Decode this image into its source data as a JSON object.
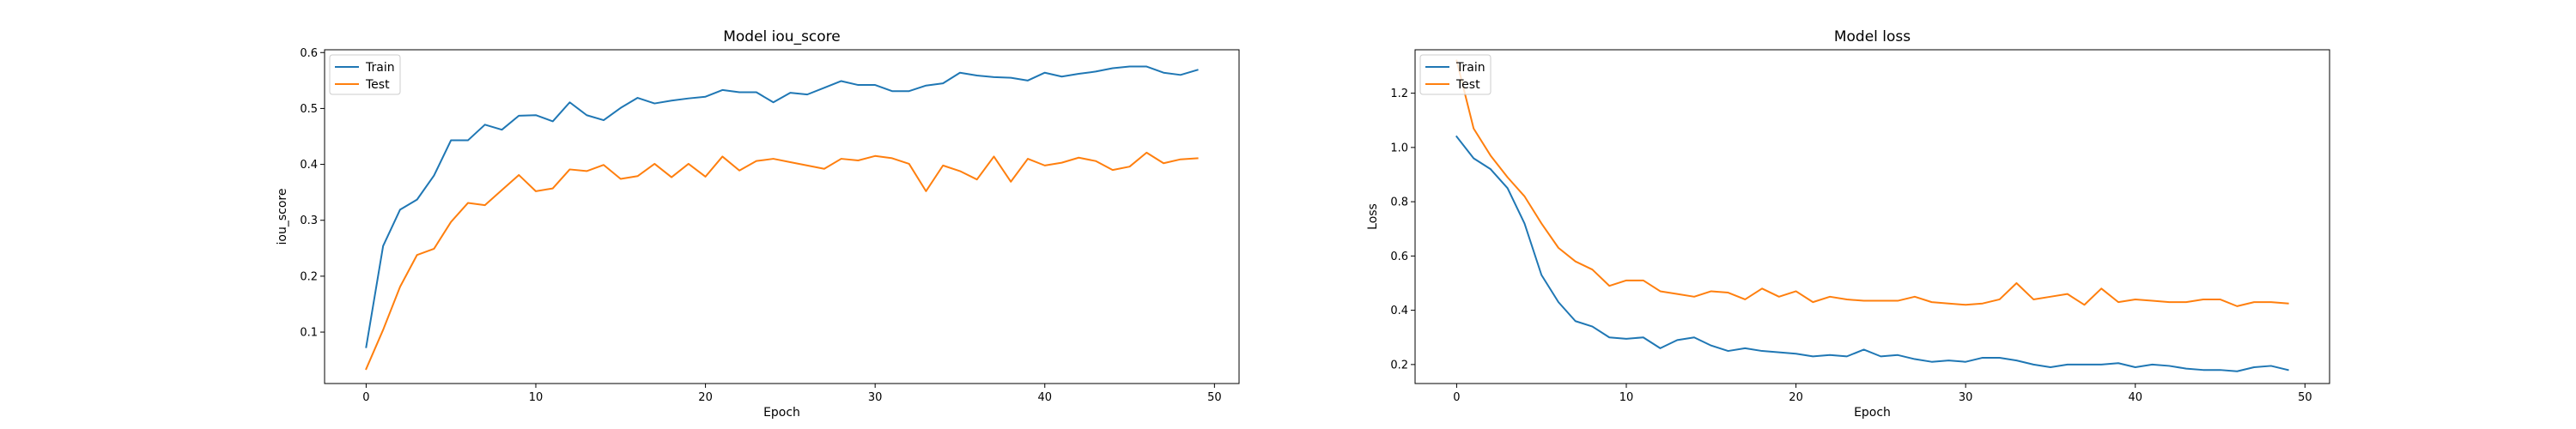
{
  "colors": {
    "train": "#1f77b4",
    "test": "#ff7f0e",
    "axes": "#000000",
    "background": "#ffffff",
    "legend_border": "#cccccc"
  },
  "chart_data": [
    {
      "type": "line",
      "title": "Model iou_score",
      "xlabel": "Epoch",
      "ylabel": "iou_score",
      "xlim": [
        -2.45,
        51.45
      ],
      "ylim": [
        0.008,
        0.605
      ],
      "xticks": [
        0,
        10,
        20,
        30,
        40,
        50
      ],
      "yticks": [
        0.1,
        0.2,
        0.3,
        0.4,
        0.5,
        0.6
      ],
      "ytick_labels": [
        "0.1",
        "0.2",
        "0.3",
        "0.4",
        "0.5",
        "0.6"
      ],
      "legend": {
        "position": "upper left",
        "entries": [
          "Train",
          "Test"
        ]
      },
      "grid": false,
      "x": [
        0,
        1,
        2,
        3,
        4,
        5,
        6,
        7,
        8,
        9,
        10,
        11,
        12,
        13,
        14,
        15,
        16,
        17,
        18,
        19,
        20,
        21,
        22,
        23,
        24,
        25,
        26,
        27,
        28,
        29,
        30,
        31,
        32,
        33,
        34,
        35,
        36,
        37,
        38,
        39,
        40,
        41,
        42,
        43,
        44,
        45,
        46,
        47,
        48,
        49
      ],
      "series": [
        {
          "name": "Train",
          "color": "#1f77b4",
          "values": [
            0.073,
            0.254,
            0.319,
            0.337,
            0.38,
            0.443,
            0.443,
            0.471,
            0.462,
            0.487,
            0.488,
            0.477,
            0.511,
            0.488,
            0.479,
            0.501,
            0.519,
            0.509,
            0.514,
            0.518,
            0.521,
            0.533,
            0.529,
            0.529,
            0.511,
            0.528,
            0.525,
            0.537,
            0.549,
            0.542,
            0.542,
            0.531,
            0.531,
            0.541,
            0.545,
            0.564,
            0.559,
            0.556,
            0.555,
            0.55,
            0.564,
            0.557,
            0.562,
            0.566,
            0.572,
            0.575,
            0.575,
            0.564,
            0.56,
            0.569
          ]
        },
        {
          "name": "Test",
          "color": "#ff7f0e",
          "values": [
            0.034,
            0.104,
            0.181,
            0.238,
            0.249,
            0.297,
            0.331,
            0.327,
            0.354,
            0.381,
            0.352,
            0.357,
            0.391,
            0.388,
            0.399,
            0.374,
            0.379,
            0.401,
            0.377,
            0.401,
            0.378,
            0.414,
            0.389,
            0.406,
            0.41,
            0.404,
            0.398,
            0.392,
            0.41,
            0.407,
            0.415,
            0.411,
            0.401,
            0.352,
            0.398,
            0.388,
            0.373,
            0.414,
            0.369,
            0.41,
            0.398,
            0.403,
            0.412,
            0.406,
            0.39,
            0.396,
            0.421,
            0.402,
            0.409,
            0.411
          ]
        }
      ]
    },
    {
      "type": "line",
      "title": "Model loss",
      "xlabel": "Epoch",
      "ylabel": "Loss",
      "xlim": [
        -2.45,
        51.45
      ],
      "ylim": [
        0.13,
        1.36
      ],
      "xticks": [
        0,
        10,
        20,
        30,
        40,
        50
      ],
      "yticks": [
        0.2,
        0.4,
        0.6,
        0.8,
        1.0,
        1.2
      ],
      "ytick_labels": [
        "0.2",
        "0.4",
        "0.6",
        "0.8",
        "1.0",
        "1.2"
      ],
      "legend": {
        "position": "upper left",
        "entries": [
          "Train",
          "Test"
        ]
      },
      "grid": false,
      "x": [
        0,
        1,
        2,
        3,
        4,
        5,
        6,
        7,
        8,
        9,
        10,
        11,
        12,
        13,
        14,
        15,
        16,
        17,
        18,
        19,
        20,
        21,
        22,
        23,
        24,
        25,
        26,
        27,
        28,
        29,
        30,
        31,
        32,
        33,
        34,
        35,
        36,
        37,
        38,
        39,
        40,
        41,
        42,
        43,
        44,
        45,
        46,
        47,
        48,
        49
      ],
      "series": [
        {
          "name": "Train",
          "color": "#1f77b4",
          "values": [
            1.04,
            0.96,
            0.92,
            0.85,
            0.72,
            0.53,
            0.43,
            0.36,
            0.34,
            0.3,
            0.295,
            0.3,
            0.26,
            0.29,
            0.3,
            0.27,
            0.25,
            0.26,
            0.25,
            0.245,
            0.24,
            0.23,
            0.235,
            0.23,
            0.255,
            0.23,
            0.235,
            0.22,
            0.21,
            0.215,
            0.21,
            0.225,
            0.225,
            0.215,
            0.2,
            0.19,
            0.2,
            0.2,
            0.2,
            0.205,
            0.19,
            0.2,
            0.195,
            0.185,
            0.18,
            0.18,
            0.175,
            0.19,
            0.195,
            0.18
          ]
        },
        {
          "name": "Test",
          "color": "#ff7f0e",
          "values": [
            1.32,
            1.07,
            0.97,
            0.89,
            0.82,
            0.72,
            0.63,
            0.58,
            0.55,
            0.49,
            0.51,
            0.51,
            0.47,
            0.46,
            0.45,
            0.47,
            0.465,
            0.44,
            0.48,
            0.45,
            0.47,
            0.43,
            0.45,
            0.44,
            0.435,
            0.435,
            0.435,
            0.45,
            0.43,
            0.425,
            0.42,
            0.425,
            0.44,
            0.5,
            0.44,
            0.45,
            0.46,
            0.42,
            0.48,
            0.43,
            0.44,
            0.435,
            0.43,
            0.43,
            0.44,
            0.44,
            0.415,
            0.43,
            0.43,
            0.425
          ]
        }
      ]
    }
  ]
}
